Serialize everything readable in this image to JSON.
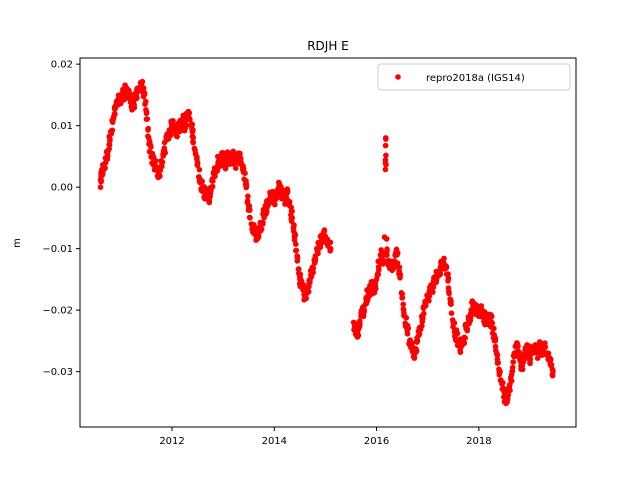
{
  "chart_data": {
    "type": "scatter",
    "title": "RDJH E",
    "xlabel": "",
    "ylabel": "m",
    "xlim": [
      2010.2,
      2019.9
    ],
    "ylim": [
      -0.039,
      0.021
    ],
    "x_ticks": [
      2012,
      2014,
      2016,
      2018
    ],
    "x_tick_labels": [
      "2012",
      "2014",
      "2016",
      "2018"
    ],
    "y_ticks": [
      -0.03,
      -0.02,
      -0.01,
      0.0,
      0.01,
      0.02
    ],
    "y_tick_labels": [
      "−0.03",
      "−0.02",
      "−0.01",
      "0.00",
      "0.01",
      "0.02"
    ],
    "grid": false,
    "legend_position": "top-right",
    "series": [
      {
        "name": "repro2018a (IGS14)",
        "color": "#ff0000",
        "marker": "circle",
        "points": [
          [
            2010.6,
            0.0
          ],
          [
            2010.62,
            0.002
          ],
          [
            2010.65,
            0.003
          ],
          [
            2010.7,
            0.004
          ],
          [
            2010.75,
            0.006
          ],
          [
            2010.8,
            0.009
          ],
          [
            2010.85,
            0.011
          ],
          [
            2010.9,
            0.013
          ],
          [
            2010.95,
            0.014
          ],
          [
            2011.0,
            0.014
          ],
          [
            2011.05,
            0.015
          ],
          [
            2011.1,
            0.016
          ],
          [
            2011.15,
            0.015
          ],
          [
            2011.2,
            0.014
          ],
          [
            2011.25,
            0.013
          ],
          [
            2011.3,
            0.015
          ],
          [
            2011.35,
            0.016
          ],
          [
            2011.4,
            0.017
          ],
          [
            2011.45,
            0.015
          ],
          [
            2011.5,
            0.012
          ],
          [
            2011.55,
            0.007
          ],
          [
            2011.6,
            0.005
          ],
          [
            2011.65,
            0.004
          ],
          [
            2011.7,
            0.003
          ],
          [
            2011.75,
            0.002
          ],
          [
            2011.8,
            0.004
          ],
          [
            2011.85,
            0.006
          ],
          [
            2011.9,
            0.008
          ],
          [
            2011.95,
            0.009
          ],
          [
            2012.0,
            0.01
          ],
          [
            2012.05,
            0.01
          ],
          [
            2012.1,
            0.009
          ],
          [
            2012.15,
            0.01
          ],
          [
            2012.2,
            0.011
          ],
          [
            2012.25,
            0.01
          ],
          [
            2012.3,
            0.012
          ],
          [
            2012.35,
            0.011
          ],
          [
            2012.4,
            0.009
          ],
          [
            2012.45,
            0.006
          ],
          [
            2012.5,
            0.004
          ],
          [
            2012.55,
            0.001
          ],
          [
            2012.6,
            0.0
          ],
          [
            2012.65,
            -0.001
          ],
          [
            2012.7,
            -0.002
          ],
          [
            2012.75,
            -0.001
          ],
          [
            2012.8,
            0.001
          ],
          [
            2012.85,
            0.003
          ],
          [
            2012.9,
            0.004
          ],
          [
            2012.95,
            0.004
          ],
          [
            2013.0,
            0.005
          ],
          [
            2013.05,
            0.004
          ],
          [
            2013.1,
            0.005
          ],
          [
            2013.15,
            0.004
          ],
          [
            2013.2,
            0.005
          ],
          [
            2013.25,
            0.004
          ],
          [
            2013.3,
            0.005
          ],
          [
            2013.35,
            0.004
          ],
          [
            2013.4,
            0.003
          ],
          [
            2013.45,
            0.0
          ],
          [
            2013.5,
            -0.003
          ],
          [
            2013.55,
            -0.006
          ],
          [
            2013.6,
            -0.007
          ],
          [
            2013.65,
            -0.008
          ],
          [
            2013.7,
            -0.007
          ],
          [
            2013.75,
            -0.006
          ],
          [
            2013.8,
            -0.004
          ],
          [
            2013.85,
            -0.003
          ],
          [
            2013.9,
            -0.002
          ],
          [
            2013.95,
            -0.001
          ],
          [
            2014.0,
            -0.002
          ],
          [
            2014.05,
            -0.001
          ],
          [
            2014.1,
            0.0
          ],
          [
            2014.15,
            -0.001
          ],
          [
            2014.2,
            -0.002
          ],
          [
            2014.25,
            -0.001
          ],
          [
            2014.3,
            -0.003
          ],
          [
            2014.35,
            -0.005
          ],
          [
            2014.4,
            -0.008
          ],
          [
            2014.45,
            -0.012
          ],
          [
            2014.5,
            -0.015
          ],
          [
            2014.55,
            -0.016
          ],
          [
            2014.6,
            -0.018
          ],
          [
            2014.65,
            -0.017
          ],
          [
            2014.7,
            -0.015
          ],
          [
            2014.75,
            -0.013
          ],
          [
            2014.8,
            -0.012
          ],
          [
            2014.85,
            -0.01
          ],
          [
            2014.9,
            -0.009
          ],
          [
            2014.95,
            -0.008
          ],
          [
            2015.0,
            -0.008
          ],
          [
            2015.1,
            -0.01
          ],
          [
            2015.55,
            -0.022
          ],
          [
            2015.6,
            -0.024
          ],
          [
            2015.65,
            -0.023
          ],
          [
            2015.7,
            -0.021
          ],
          [
            2015.75,
            -0.02
          ],
          [
            2015.8,
            -0.018
          ],
          [
            2015.85,
            -0.017
          ],
          [
            2015.9,
            -0.016
          ],
          [
            2015.95,
            -0.017
          ],
          [
            2016.0,
            -0.015
          ],
          [
            2016.05,
            -0.012
          ],
          [
            2016.1,
            -0.011
          ],
          [
            2016.15,
            -0.012
          ],
          [
            2016.18,
            0.008
          ],
          [
            2016.2,
            -0.011
          ],
          [
            2016.25,
            -0.012
          ],
          [
            2016.3,
            -0.013
          ],
          [
            2016.35,
            -0.012
          ],
          [
            2016.4,
            -0.011
          ],
          [
            2016.45,
            -0.014
          ],
          [
            2016.5,
            -0.018
          ],
          [
            2016.55,
            -0.021
          ],
          [
            2016.6,
            -0.023
          ],
          [
            2016.65,
            -0.025
          ],
          [
            2016.7,
            -0.026
          ],
          [
            2016.75,
            -0.027
          ],
          [
            2016.8,
            -0.025
          ],
          [
            2016.85,
            -0.023
          ],
          [
            2016.9,
            -0.021
          ],
          [
            2016.95,
            -0.019
          ],
          [
            2017.0,
            -0.018
          ],
          [
            2017.05,
            -0.017
          ],
          [
            2017.1,
            -0.016
          ],
          [
            2017.15,
            -0.015
          ],
          [
            2017.2,
            -0.014
          ],
          [
            2017.25,
            -0.013
          ],
          [
            2017.3,
            -0.012
          ],
          [
            2017.35,
            -0.013
          ],
          [
            2017.4,
            -0.015
          ],
          [
            2017.45,
            -0.019
          ],
          [
            2017.5,
            -0.022
          ],
          [
            2017.55,
            -0.024
          ],
          [
            2017.6,
            -0.025
          ],
          [
            2017.65,
            -0.026
          ],
          [
            2017.7,
            -0.025
          ],
          [
            2017.75,
            -0.023
          ],
          [
            2017.8,
            -0.022
          ],
          [
            2017.85,
            -0.02
          ],
          [
            2017.9,
            -0.019
          ],
          [
            2017.95,
            -0.02
          ],
          [
            2018.0,
            -0.021
          ],
          [
            2018.05,
            -0.02
          ],
          [
            2018.1,
            -0.021
          ],
          [
            2018.15,
            -0.022
          ],
          [
            2018.2,
            -0.021
          ],
          [
            2018.25,
            -0.022
          ],
          [
            2018.3,
            -0.024
          ],
          [
            2018.35,
            -0.027
          ],
          [
            2018.4,
            -0.03
          ],
          [
            2018.45,
            -0.032
          ],
          [
            2018.5,
            -0.034
          ],
          [
            2018.55,
            -0.035
          ],
          [
            2018.6,
            -0.033
          ],
          [
            2018.65,
            -0.03
          ],
          [
            2018.7,
            -0.027
          ],
          [
            2018.75,
            -0.026
          ],
          [
            2018.8,
            -0.028
          ],
          [
            2018.85,
            -0.029
          ],
          [
            2018.9,
            -0.027
          ],
          [
            2018.95,
            -0.026
          ],
          [
            2019.0,
            -0.028
          ],
          [
            2019.05,
            -0.027
          ],
          [
            2019.1,
            -0.026
          ],
          [
            2019.15,
            -0.027
          ],
          [
            2019.2,
            -0.026
          ],
          [
            2019.25,
            -0.027
          ],
          [
            2019.3,
            -0.026
          ],
          [
            2019.35,
            -0.027
          ],
          [
            2019.4,
            -0.028
          ],
          [
            2019.45,
            -0.03
          ]
        ]
      }
    ]
  }
}
